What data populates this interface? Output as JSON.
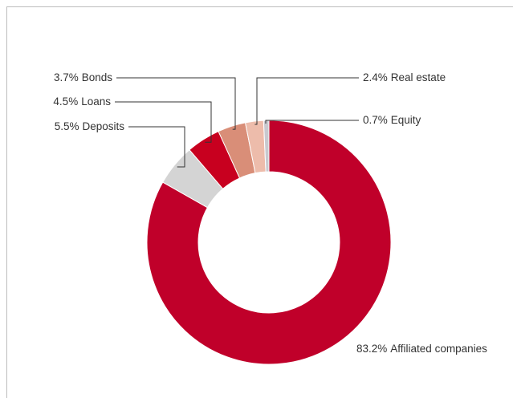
{
  "chart_data": {
    "type": "donut",
    "categories": [
      "Affiliated companies",
      "Deposits",
      "Loans",
      "Bonds",
      "Real estate",
      "Equity"
    ],
    "values": [
      83.2,
      5.5,
      4.5,
      3.7,
      2.4,
      0.7
    ],
    "value_labels": [
      "83.2%",
      "5.5%",
      "4.5%",
      "3.7%",
      "2.4%",
      "0.7%"
    ],
    "colors": [
      "#c0002a",
      "#d4d4d4",
      "#c8001f",
      "#d98e78",
      "#edbcab",
      "#c9c9cf"
    ]
  }
}
